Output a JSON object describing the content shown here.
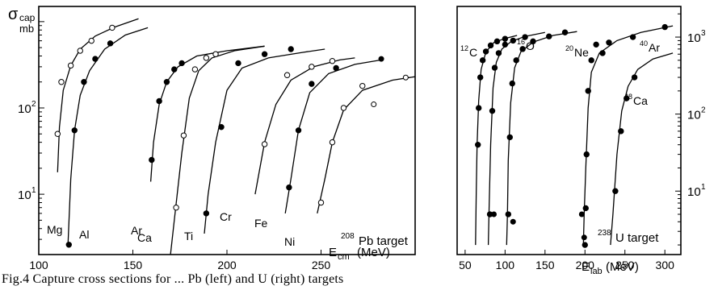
{
  "y_axis_label": {
    "sigma": "σ",
    "sub": "cap",
    "unit": "mb"
  },
  "caption": "Fig.4 Capture cross sections for ... Pb (left) and U (right) targets",
  "chart_data": [
    {
      "type": "scatter",
      "target_label": {
        "mass": "208",
        "text": "Pb target"
      },
      "xlabel": "E",
      "xlabel_sub": "cm",
      "xlabel_unit": "(MeV)",
      "xlim": [
        100,
        300
      ],
      "ylim": [
        2,
        1500
      ],
      "y_scale": "log",
      "x_ticks": [
        "100",
        "150",
        "200",
        "250"
      ],
      "y_ticks": [
        {
          "v": 10,
          "base": "10",
          "exp": "1"
        },
        {
          "v": 100,
          "base": "10",
          "exp": "2"
        }
      ],
      "series": [
        {
          "name": "Mg",
          "marker": "open",
          "points": [
            [
              110,
              50
            ],
            [
              112,
              200
            ],
            [
              117,
              310
            ],
            [
              122,
              460
            ],
            [
              128,
              600
            ],
            [
              139,
              850
            ]
          ],
          "curve": [
            [
              110,
              18
            ],
            [
              111,
              60
            ],
            [
              113,
              160
            ],
            [
              117,
              310
            ],
            [
              122,
              480
            ],
            [
              130,
              680
            ],
            [
              140,
              860
            ],
            [
              153,
              1080
            ]
          ]
        },
        {
          "name": "Al",
          "marker": "filled",
          "points": [
            [
              116,
              2.6
            ],
            [
              119,
              55
            ],
            [
              124,
              200
            ],
            [
              130,
              370
            ],
            [
              138,
              560
            ]
          ],
          "curve": [
            [
              115.5,
              2.5
            ],
            [
              117,
              15
            ],
            [
              119,
              55
            ],
            [
              122,
              140
            ],
            [
              127,
              270
            ],
            [
              135,
              480
            ],
            [
              146,
              700
            ],
            [
              158,
              850
            ]
          ]
        },
        {
          "name": "Ar",
          "marker": "filled",
          "points": [
            [
              160,
              25
            ],
            [
              164,
              120
            ],
            [
              168,
              200
            ],
            [
              172,
              280
            ],
            [
              176,
              330
            ]
          ],
          "curve": [
            [
              159.5,
              14
            ],
            [
              161,
              40
            ],
            [
              164,
              110
            ],
            [
              168,
              200
            ],
            [
              174,
              300
            ],
            [
              184,
              400
            ],
            [
              200,
              460
            ],
            [
              220,
              520
            ]
          ]
        },
        {
          "name": "Ca",
          "marker": "open",
          "points": [
            [
              173,
              7
            ],
            [
              177,
              48
            ],
            [
              183,
              280
            ],
            [
              189,
              380
            ],
            [
              194,
              420
            ]
          ],
          "curve": [
            [
              170,
              2
            ],
            [
              172,
              5
            ],
            [
              176,
              30
            ],
            [
              180,
              130
            ],
            [
              185,
              270
            ],
            [
              192,
              380
            ],
            [
              204,
              460
            ],
            [
              220,
              520
            ]
          ]
        },
        {
          "name": "Ti",
          "marker": "filled",
          "points": [
            [
              189,
              6
            ],
            [
              197,
              60
            ],
            [
              206,
              330
            ],
            [
              220,
              420
            ],
            [
              234,
              480
            ]
          ],
          "curve": [
            [
              188,
              3.5
            ],
            [
              190,
              10
            ],
            [
              194,
              40
            ],
            [
              200,
              160
            ],
            [
              208,
              290
            ],
            [
              222,
              380
            ],
            [
              240,
              440
            ],
            [
              252,
              480
            ]
          ]
        },
        {
          "name": "Cr",
          "marker": "open",
          "points": [
            [
              220,
              38
            ],
            [
              232,
              240
            ],
            [
              245,
              300
            ],
            [
              256,
              350
            ]
          ],
          "curve": [
            [
              215,
              10
            ],
            [
              220,
              40
            ],
            [
              226,
              110
            ],
            [
              234,
              210
            ],
            [
              246,
              300
            ],
            [
              260,
              360
            ],
            [
              268,
              380
            ]
          ]
        },
        {
          "name": "Fe",
          "marker": "filled",
          "points": [
            [
              233,
              12
            ],
            [
              238,
              55
            ],
            [
              245,
              190
            ],
            [
              258,
              290
            ]
          ],
          "curve": [
            [
              231,
              6
            ],
            [
              234,
              15
            ],
            [
              238,
              55
            ],
            [
              244,
              150
            ],
            [
              254,
              250
            ],
            [
              268,
              320
            ],
            [
              282,
              360
            ]
          ]
        },
        {
          "name": "Ni",
          "marker": "open",
          "points": [
            [
              250,
              8
            ],
            [
              256,
              40
            ],
            [
              262,
              100
            ],
            [
              272,
              180
            ]
          ],
          "curve": [
            [
              248,
              6
            ],
            [
              252,
              15
            ],
            [
              256,
              40
            ],
            [
              262,
              95
            ],
            [
              272,
              160
            ],
            [
              288,
              210
            ],
            [
              300,
              230
            ]
          ]
        }
      ],
      "extra_points": [
        {
          "x": 278,
          "y": 110,
          "marker": "open"
        },
        {
          "x": 295,
          "y": 225,
          "marker": "open"
        },
        {
          "x": 282,
          "y": 370,
          "marker": "filled"
        }
      ]
    },
    {
      "type": "scatter",
      "target_label": {
        "mass": "238",
        "text": "U target"
      },
      "xlabel": "E",
      "xlabel_sub": "lab",
      "xlabel_unit": "(MeV)",
      "xlim": [
        40,
        320
      ],
      "ylim": [
        1.5,
        2500
      ],
      "y_scale": "log",
      "x_ticks": [
        "50",
        "100",
        "150",
        "200",
        "250",
        "300"
      ],
      "y_ticks": [
        {
          "v": 10,
          "base": "10",
          "exp": "1"
        },
        {
          "v": 100,
          "base": "10",
          "exp": "2"
        },
        {
          "v": 1000,
          "base": "10",
          "exp": "3"
        }
      ],
      "series": [
        {
          "name": "12C",
          "mass": "12",
          "element": "C",
          "marker": "filled",
          "points": [
            [
              66,
              40
            ],
            [
              67,
              120
            ],
            [
              69,
              300
            ],
            [
              72,
              500
            ],
            [
              76,
              650
            ],
            [
              82,
              780
            ],
            [
              90,
              880
            ],
            [
              100,
              950
            ]
          ],
          "curve": [
            [
              63,
              2
            ],
            [
              64,
              10
            ],
            [
              65,
              40
            ],
            [
              67,
              150
            ],
            [
              70,
              380
            ],
            [
              76,
              640
            ],
            [
              86,
              850
            ],
            [
              100,
              960
            ],
            [
              115,
              1050
            ]
          ]
        },
        {
          "name": "16O",
          "mass": "16",
          "element": "O",
          "marker": "filled",
          "points": [
            [
              81,
              5
            ],
            [
              84,
              110
            ],
            [
              87,
              400
            ],
            [
              92,
              620
            ],
            [
              100,
              800
            ],
            [
              110,
              900
            ],
            [
              125,
              1000
            ]
          ],
          "curve": [
            [
              79,
              2
            ],
            [
              80,
              6
            ],
            [
              82,
              40
            ],
            [
              85,
              220
            ],
            [
              89,
              470
            ],
            [
              96,
              700
            ],
            [
              108,
              880
            ],
            [
              125,
              1020
            ],
            [
              150,
              1150
            ]
          ]
        },
        {
          "name": "20Ne",
          "mass": "20",
          "element": "Ne",
          "marker": "filled",
          "points": [
            [
              104,
              5
            ],
            [
              106,
              50
            ],
            [
              109,
              250
            ],
            [
              114,
              500
            ],
            [
              122,
              700
            ],
            [
              135,
              880
            ],
            [
              155,
              1020
            ],
            [
              175,
              1150
            ]
          ],
          "curve": [
            [
              102,
              2
            ],
            [
              103,
              5
            ],
            [
              104,
              25
            ],
            [
              107,
              140
            ],
            [
              112,
              400
            ],
            [
              120,
              650
            ],
            [
              135,
              860
            ],
            [
              160,
              1050
            ],
            [
              190,
              1180
            ]
          ]
        },
        {
          "name": "40Ar",
          "mass": "40",
          "element": "Ar",
          "marker": "filled",
          "points": [
            [
              200,
              2
            ],
            [
              201,
              6
            ],
            [
              202,
              30
            ],
            [
              204,
              200
            ],
            [
              208,
              500
            ],
            [
              214,
              800
            ],
            [
              222,
              620
            ],
            [
              230,
              850
            ],
            [
              260,
              1000
            ],
            [
              300,
              1350
            ]
          ],
          "curve": [
            [
              198,
              2
            ],
            [
              199,
              5
            ],
            [
              201,
              20
            ],
            [
              204,
              120
            ],
            [
              208,
              350
            ],
            [
              218,
              620
            ],
            [
              240,
              900
            ],
            [
              270,
              1150
            ],
            [
              310,
              1400
            ]
          ]
        },
        {
          "name": "48Ca",
          "mass": "48",
          "element": "Ca",
          "marker": "filled",
          "points": [
            [
              238,
              10
            ],
            [
              245,
              60
            ],
            [
              252,
              160
            ],
            [
              262,
              300
            ]
          ],
          "curve": [
            [
              232,
              2
            ],
            [
              235,
              5
            ],
            [
              240,
              30
            ],
            [
              246,
              110
            ],
            [
              254,
              230
            ],
            [
              266,
              380
            ],
            [
              285,
              520
            ],
            [
              310,
              620
            ]
          ]
        }
      ],
      "extra_points": [
        {
          "x": 86,
          "y": 5,
          "marker": "filled"
        },
        {
          "x": 110,
          "y": 4,
          "marker": "filled"
        },
        {
          "x": 196,
          "y": 5,
          "marker": "filled"
        },
        {
          "x": 199,
          "y": 2.5,
          "marker": "filled"
        }
      ]
    }
  ]
}
